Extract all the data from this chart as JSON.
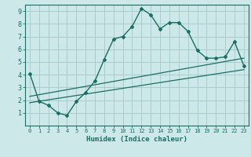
{
  "xlabel": "Humidex (Indice chaleur)",
  "bg_color": "#cce8e8",
  "grid_color": "#aacccc",
  "line_color": "#1a6e64",
  "xlim": [
    -0.5,
    23.5
  ],
  "ylim": [
    0,
    9.5
  ],
  "xticks": [
    0,
    1,
    2,
    3,
    4,
    5,
    6,
    7,
    8,
    9,
    10,
    11,
    12,
    13,
    14,
    15,
    16,
    17,
    18,
    19,
    20,
    21,
    22,
    23
  ],
  "yticks": [
    1,
    2,
    3,
    4,
    5,
    6,
    7,
    8,
    9
  ],
  "curve1_x": [
    0,
    1,
    2,
    3,
    4,
    5,
    6,
    7,
    8,
    9,
    10,
    11,
    12,
    13,
    14,
    15,
    16,
    17,
    18,
    19,
    20,
    21,
    22,
    23
  ],
  "curve1_y": [
    4.1,
    1.9,
    1.6,
    1.0,
    0.8,
    1.9,
    2.6,
    3.5,
    5.2,
    6.8,
    7.0,
    7.8,
    9.2,
    8.7,
    7.6,
    8.1,
    8.1,
    7.4,
    5.9,
    5.3,
    5.3,
    5.4,
    6.6,
    4.7
  ],
  "curve2_x": [
    0,
    23
  ],
  "curve2_y": [
    1.8,
    4.4
  ],
  "curve3_x": [
    0,
    23
  ],
  "curve3_y": [
    2.3,
    5.3
  ]
}
